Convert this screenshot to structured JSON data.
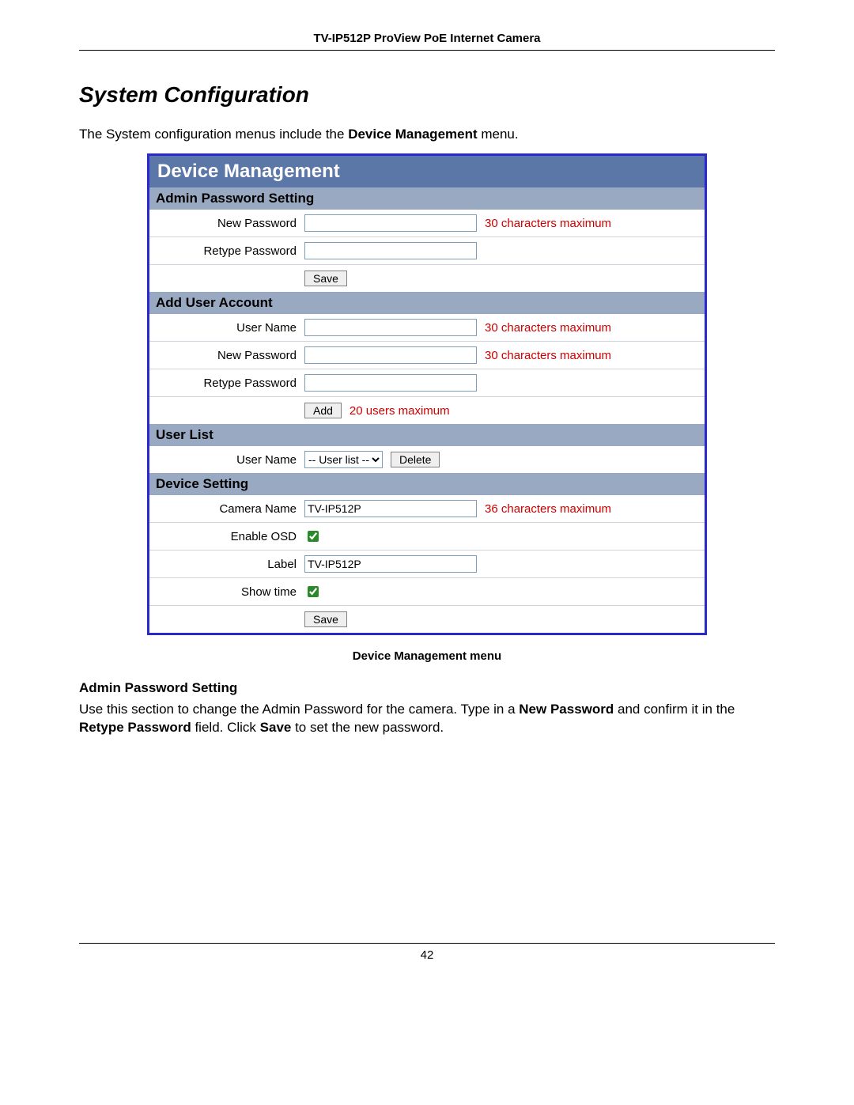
{
  "doc": {
    "header": "TV-IP512P ProView PoE Internet Camera",
    "section_title": "System Configuration",
    "intro_pre": "The System configuration menus include the ",
    "intro_bold": "Device Management",
    "intro_post": " menu.",
    "caption": "Device Management menu",
    "para_heading": "Admin Password Setting",
    "para1_a": "Use this section to change the Admin Password for the camera. Type in a ",
    "para1_b": "New Password",
    "para1_c": " and confirm it in the ",
    "para1_d": "Retype Password",
    "para1_e": " field. Click ",
    "para1_f": "Save",
    "para1_g": " to set the new password.",
    "page_number": "42"
  },
  "panel": {
    "title": "Device Management",
    "admin": {
      "heading": "Admin Password Setting",
      "new_password_label": "New Password",
      "new_password_value": "",
      "new_password_hint": "30 characters maximum",
      "retype_label": "Retype Password",
      "retype_value": "",
      "save_label": "Save"
    },
    "adduser": {
      "heading": "Add User Account",
      "username_label": "User Name",
      "username_value": "",
      "username_hint": "30 characters maximum",
      "newpw_label": "New Password",
      "newpw_value": "",
      "newpw_hint": "30 characters maximum",
      "retype_label": "Retype Password",
      "retype_value": "",
      "add_label": "Add",
      "add_hint": "20 users maximum"
    },
    "userlist": {
      "heading": "User List",
      "username_label": "User Name",
      "select_value": "-- User list --",
      "delete_label": "Delete"
    },
    "device": {
      "heading": "Device Setting",
      "camera_name_label": "Camera Name",
      "camera_name_value": "TV-IP512P",
      "camera_name_hint": "36 characters maximum",
      "enable_osd_label": "Enable OSD",
      "enable_osd_checked": true,
      "label_label": "Label",
      "label_value": "TV-IP512P",
      "showtime_label": "Show time",
      "showtime_checked": true,
      "save_label": "Save"
    }
  }
}
